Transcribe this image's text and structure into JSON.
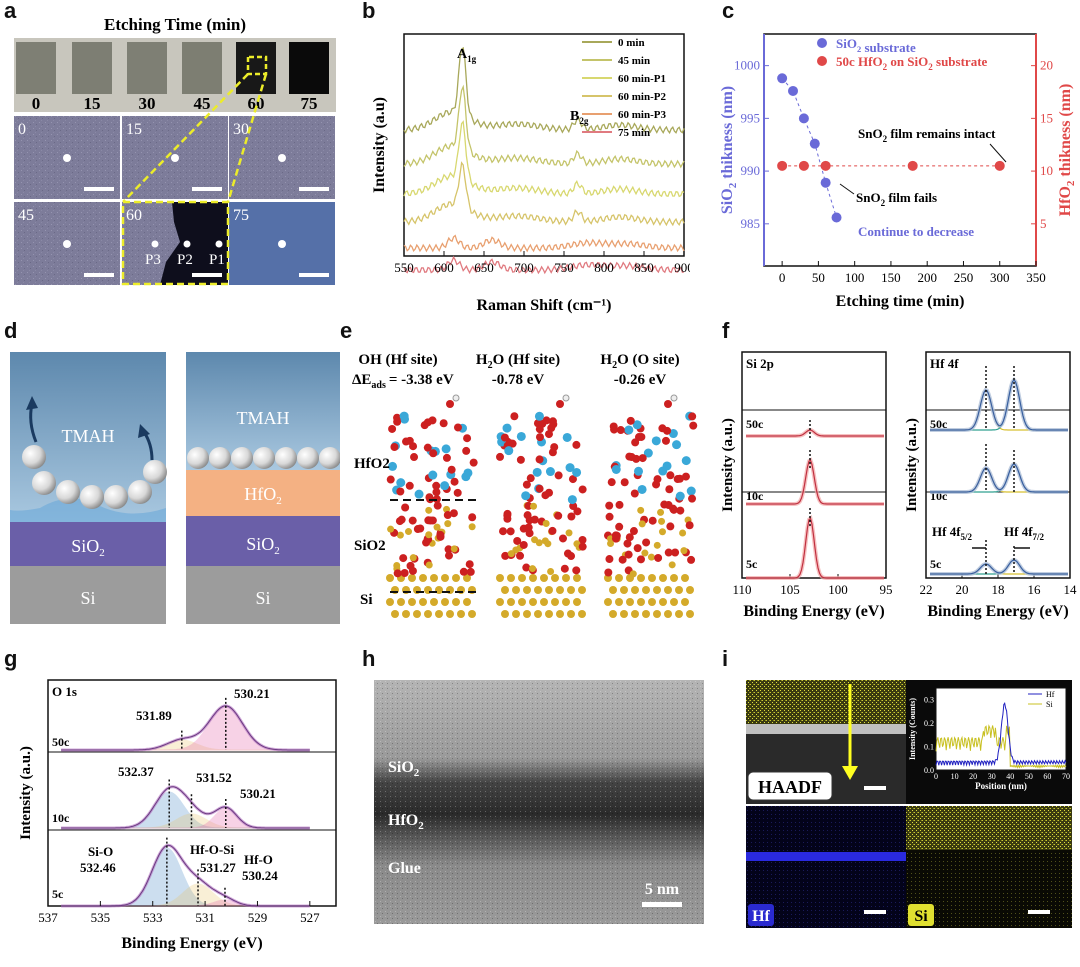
{
  "panel_labels": {
    "a": "a",
    "b": "b",
    "c": "c",
    "d": "d",
    "e": "e",
    "f": "f",
    "g": "g",
    "h": "h",
    "i": "i"
  },
  "panel_a": {
    "title": "Etching Time (min)",
    "photo_labels": [
      "0",
      "15",
      "30",
      "45",
      "60",
      "75"
    ],
    "micro_labels": [
      "0",
      "15",
      "30",
      "45",
      "60",
      "75"
    ],
    "points": [
      "P3",
      "P2",
      "P1"
    ]
  },
  "panel_b": {
    "chart_data": {
      "type": "line",
      "xlabel": "Raman Shift (cm⁻¹)",
      "ylabel": "Intensity (a.u)",
      "xlim": [
        550,
        900
      ],
      "xticks": [
        "550",
        "600",
        "650",
        "700",
        "750",
        "800",
        "850",
        "900"
      ],
      "annotations": [
        "A1g",
        "B2g"
      ],
      "series": [
        {
          "name": "0 min",
          "color": "#a8a85a",
          "peaks": [
            [
              623,
              "strong"
            ],
            [
              767,
              "weak"
            ]
          ]
        },
        {
          "name": "45 min",
          "color": "#c4c46a",
          "peaks": [
            [
              623,
              "strong"
            ],
            [
              767,
              "weak"
            ]
          ]
        },
        {
          "name": "60 min-P1",
          "color": "#d8d870",
          "peaks": [
            [
              623,
              "strong"
            ],
            [
              767,
              "weak"
            ]
          ]
        },
        {
          "name": "60 min-P2",
          "color": "#d6c46a",
          "peaks": [
            [
              623,
              "medium"
            ],
            [
              767,
              "weak"
            ]
          ]
        },
        {
          "name": "60 min-P3",
          "color": "#e8a070",
          "peaks": [
            [
              613,
              "weak"
            ],
            [
              660,
              "weak"
            ]
          ]
        },
        {
          "name": "75 min",
          "color": "#e07a80",
          "peaks": [
            [
              613,
              "weak"
            ],
            [
              660,
              "weak"
            ]
          ]
        }
      ]
    }
  },
  "panel_c": {
    "chart_data": {
      "type": "scatter",
      "xlabel": "Etching time (min)",
      "ylabel_left": "SiO2 thikness (nm)",
      "ylabel_right": "HfO2 thikness (nm)",
      "xlim": [
        -25,
        350
      ],
      "xticks": [
        0,
        50,
        100,
        150,
        200,
        250,
        300,
        350
      ],
      "ylim_left": [
        981,
        1003
      ],
      "yticks_left": [
        985,
        990,
        995,
        1000
      ],
      "ylim_right": [
        1,
        23
      ],
      "yticks_right": [
        5,
        10,
        15,
        20
      ],
      "series": [
        {
          "name": "SiO2 substrate",
          "color": "#6a6ad8",
          "axis": "left",
          "x": [
            0,
            15,
            30,
            45,
            60,
            75
          ],
          "y": [
            998.8,
            997.6,
            995.0,
            992.6,
            988.9,
            985.6
          ]
        },
        {
          "name": "50c HfO2 on SiO2 substrate",
          "color": "#e04848",
          "axis": "right",
          "x": [
            0,
            30,
            60,
            180,
            300
          ],
          "y": [
            10.5,
            10.5,
            10.5,
            10.5,
            10.5
          ]
        }
      ],
      "annotations": [
        "SnO2 film remains intact",
        "SnO2 film fails",
        "Continue to decrease"
      ]
    }
  },
  "panel_d": {
    "left": [
      "TMAH",
      "SiO2",
      "Si"
    ],
    "right": [
      "TMAH",
      "HfO2",
      "SiO2",
      "Si"
    ]
  },
  "panel_e": {
    "headers": [
      "OH (Hf site)",
      "H2O (Hf site)",
      "H2O (O site)"
    ],
    "energy_label": "ΔE",
    "energy_sub": "ads",
    "energies": [
      "= -3.38 eV",
      "-0.78 eV",
      "-0.26 eV"
    ],
    "layers": [
      "HfO2",
      "SiO2",
      "Si"
    ]
  },
  "panel_f": {
    "left": {
      "title": "Si 2p",
      "labels": [
        "50c",
        "10c",
        "5c"
      ],
      "xticks": [
        "110",
        "105",
        "100",
        "95"
      ],
      "xlabel": "Binding Energy (eV)",
      "ylabel": "Intensity (a.u.)"
    },
    "right": {
      "title": "Hf 4f",
      "labels": [
        "50c",
        "10c",
        "5c"
      ],
      "xticks": [
        "22",
        "20",
        "18",
        "16",
        "14"
      ],
      "xlabel": "Binding Energy (eV)",
      "ylabel": "Intensity (a.u.)",
      "peaks": [
        "Hf 4f5/2",
        "Hf 4f7/2"
      ]
    }
  },
  "panel_g": {
    "title": "O 1s",
    "labels": [
      "50c",
      "10c",
      "5c"
    ],
    "xticks": [
      "537",
      "535",
      "533",
      "531",
      "529",
      "527"
    ],
    "xlabel": "Binding Energy (eV)",
    "ylabel": "Intensity (a.u.)",
    "annotations_50c": [
      "531.89",
      "530.21"
    ],
    "annotations_10c": [
      "532.37",
      "531.52",
      "530.21"
    ],
    "annotations_5c": [
      "Si-O",
      "532.46",
      "Hf-O-Si",
      "531.27",
      "Hf-O",
      "530.24"
    ]
  },
  "panel_h": {
    "layers": [
      "SiO2",
      "HfO2",
      "Glue"
    ],
    "scale": "5 nm"
  },
  "panel_i": {
    "haadf": "HAADF",
    "hf": "Hf",
    "si": "Si",
    "inset": {
      "xlabel": "Position (nm)",
      "ylabel": "Intensity (Counts)",
      "xticks": [
        "0",
        "10",
        "20",
        "30",
        "40",
        "50",
        "60",
        "70"
      ],
      "yticks": [
        "0.0",
        "0.1",
        "0.2",
        "0.3"
      ],
      "legend": [
        "Hf",
        "Si"
      ]
    }
  }
}
